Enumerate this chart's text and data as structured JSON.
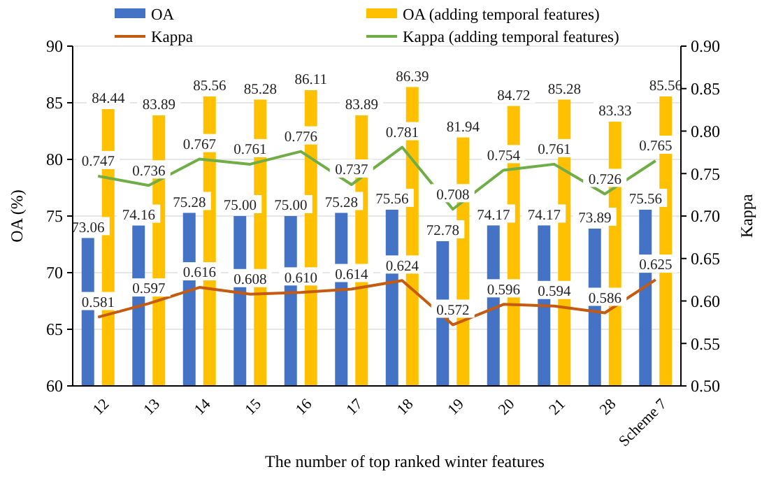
{
  "chart_data": {
    "type": "bar",
    "xlabel": "The number of top ranked winter features",
    "ylabel": "OA (%)",
    "y2label": "Kappa",
    "categories": [
      "12",
      "13",
      "14",
      "15",
      "16",
      "17",
      "18",
      "19",
      "20",
      "21",
      "28",
      "Scheme 7"
    ],
    "series": [
      {
        "name": "OA",
        "color": "#4472c4",
        "values": [
          73.06,
          74.16,
          75.28,
          75.0,
          75.0,
          75.28,
          75.56,
          72.78,
          74.17,
          74.17,
          73.89,
          75.56
        ],
        "value_labels": [
          "73.06",
          "74.16",
          "75.28",
          "75.00",
          "75.00",
          "75.28",
          "75.56",
          "72.78",
          "74.17",
          "74.17",
          "73.89",
          "75.56"
        ]
      },
      {
        "name": "OA (adding temporal features)",
        "color": "#ffc000",
        "values": [
          84.44,
          83.89,
          85.56,
          85.28,
          86.11,
          83.89,
          86.39,
          81.94,
          84.72,
          85.28,
          83.33,
          85.56
        ],
        "value_labels": [
          "84.44",
          "83.89",
          "85.56",
          "85.28",
          "86.11",
          "83.89",
          "86.39",
          "81.94",
          "84.72",
          "85.28",
          "83.33",
          "85.56"
        ]
      },
      {
        "name": "Kappa",
        "type": "line",
        "axis": "y2",
        "color": "#c55a11",
        "values": [
          0.581,
          0.597,
          0.616,
          0.608,
          0.61,
          0.614,
          0.624,
          0.572,
          0.596,
          0.594,
          0.586,
          0.625
        ],
        "value_labels": [
          "0.581",
          "0.597",
          "0.616",
          "0.608",
          "0.610",
          "0.614",
          "0.624",
          "0.572",
          "0.596",
          "0.594",
          "0.586",
          "0.625"
        ]
      },
      {
        "name": "Kappa (adding temporal features)",
        "type": "line",
        "axis": "y2",
        "color": "#70ad47",
        "values": [
          0.747,
          0.736,
          0.767,
          0.761,
          0.776,
          0.737,
          0.781,
          0.708,
          0.754,
          0.761,
          0.726,
          0.765
        ],
        "value_labels": [
          "0.747",
          "0.736",
          "0.767",
          "0.761",
          "0.776",
          "0.737",
          "0.781",
          "0.708",
          "0.754",
          "0.761",
          "0.726",
          "0.765"
        ]
      }
    ],
    "ylim": [
      60,
      90
    ],
    "yticks": [
      60,
      65,
      70,
      75,
      80,
      85,
      90
    ],
    "y2lim": [
      0.5,
      0.9
    ],
    "y2ticks": [
      {
        "value": 0.5,
        "label": "0.50"
      },
      {
        "value": 0.55,
        "label": "0.55"
      },
      {
        "value": 0.6,
        "label": "0.60"
      },
      {
        "value": 0.65,
        "label": "0.65"
      },
      {
        "value": 0.7,
        "label": "0.70"
      },
      {
        "value": 0.75,
        "label": "0.75"
      },
      {
        "value": 0.8,
        "label": "0.80"
      },
      {
        "value": 0.85,
        "label": "0.85"
      },
      {
        "value": 0.9,
        "label": "0.90"
      }
    ],
    "grid": "y",
    "legend": "top",
    "marker": "none",
    "line_style": "solid"
  }
}
